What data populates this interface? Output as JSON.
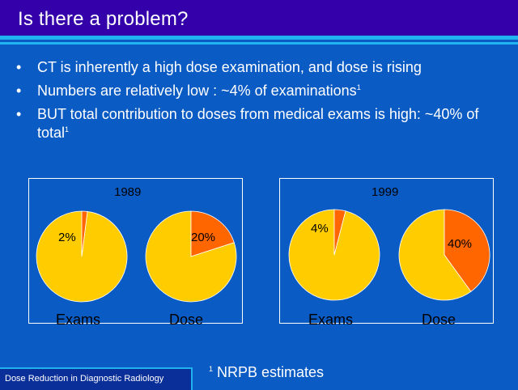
{
  "slide": {
    "title": "Is there a problem?",
    "bullets": [
      {
        "dot": "•",
        "text": "CT is inherently a high dose examination, and dose is rising",
        "sup": ""
      },
      {
        "dot": "•",
        "text": "Numbers are relatively low : ~4% of examinations",
        "sup": "1"
      },
      {
        "dot": "•",
        "text": "BUT total contribution to doses from medical exams is high: ~40% of total",
        "sup": "1"
      }
    ],
    "footer": "Dose Reduction in Diagnostic Radiology",
    "note": {
      "sup": "1",
      "text": " NRPB estimates"
    }
  },
  "colors": {
    "ct": "#ff6600",
    "other": "#ffcc00",
    "background": "#0b5bc4"
  },
  "chart_data": [
    {
      "type": "pie",
      "title": "1989",
      "pies": [
        {
          "category": "Exams",
          "ct_percent": 2,
          "label": "2%"
        },
        {
          "category": "Dose",
          "ct_percent": 20,
          "label": "20%"
        }
      ]
    },
    {
      "type": "pie",
      "title": "1999",
      "pies": [
        {
          "category": "Exams",
          "ct_percent": 4,
          "label": "4%"
        },
        {
          "category": "Dose",
          "ct_percent": 40,
          "label": "40%"
        }
      ]
    }
  ]
}
